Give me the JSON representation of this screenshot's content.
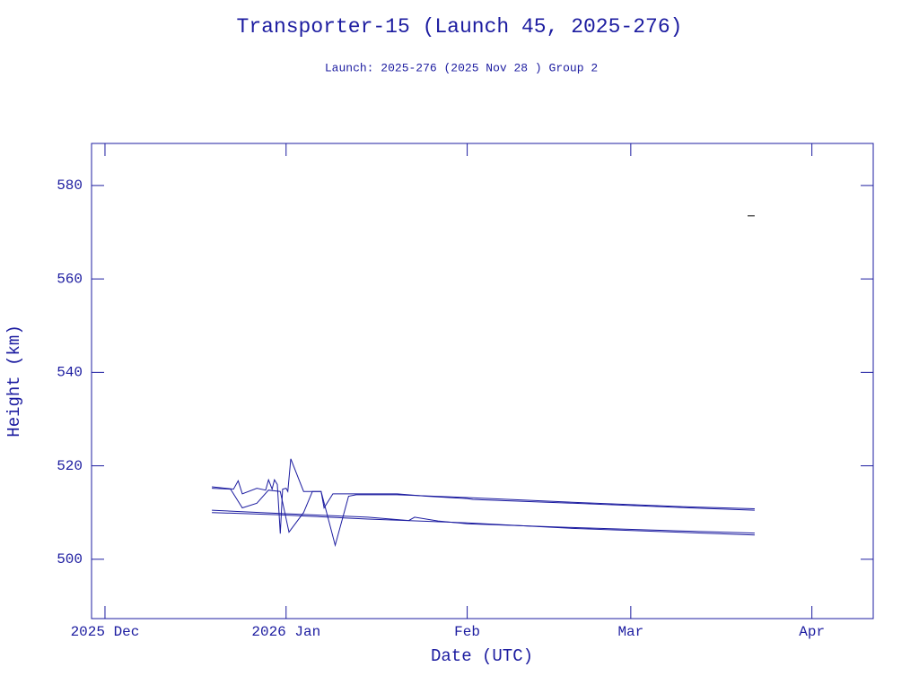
{
  "chart_data": {
    "type": "line",
    "title": "Transporter-15 (Launch 45, 2025-276)",
    "subtitle": "Launch: 2025-276  (2025 Nov 28 )  Group 2",
    "xlabel": "Date (UTC)",
    "ylabel": "Height (km)",
    "xlim": [
      -2.3,
      131.5
    ],
    "xticks": [
      {
        "value": 0,
        "label": "2025 Dec"
      },
      {
        "value": 31,
        "label": "2026 Jan"
      },
      {
        "value": 62,
        "label": "Feb"
      },
      {
        "value": 90,
        "label": "Mar"
      },
      {
        "value": 121,
        "label": "Apr"
      }
    ],
    "ylim": [
      487.3,
      589
    ],
    "yticks": [
      500,
      520,
      540,
      560,
      580
    ],
    "grid": false,
    "series": [
      {
        "color": "#1c1ca0",
        "x": [
          18.3,
          22,
          22.8,
          23.5,
          26,
          27.5,
          28,
          28.6,
          29,
          29.5,
          30,
          30.4,
          31,
          31.3,
          31.8,
          34,
          37,
          37.5,
          39,
          44,
          50,
          55,
          62,
          63,
          80,
          100,
          111.2
        ],
        "values": [
          515.5,
          515,
          516.8,
          514,
          515.2,
          514.8,
          517,
          515,
          517,
          516,
          505.5,
          515,
          515.2,
          514.5,
          521.5,
          514.5,
          514.5,
          511,
          514,
          514,
          514,
          513.5,
          513,
          512.8,
          512,
          511,
          510.5
        ]
      },
      {
        "color": "#1c1ca0",
        "x": [
          18.3,
          21.5,
          23.5,
          26,
          28,
          30,
          31.5,
          34,
          35.5,
          37,
          39.4,
          41.7,
          43,
          50,
          62,
          80,
          100,
          111.2
        ],
        "values": [
          515.2,
          515,
          511,
          512,
          514.8,
          514.5,
          505.8,
          510,
          514.5,
          514.5,
          503,
          513.5,
          513.8,
          513.8,
          513.2,
          512.2,
          511.2,
          510.8
        ]
      },
      {
        "color": "#1c1ca0",
        "x": [
          18.3,
          30,
          45,
          52,
          53,
          57,
          62,
          80,
          100,
          111.2
        ],
        "values": [
          510.5,
          509.8,
          509,
          508.3,
          509,
          508.2,
          507.6,
          506.8,
          506,
          505.6
        ]
      },
      {
        "color": "#1c1ca0",
        "x": [
          18.3,
          30,
          45,
          62,
          80,
          100,
          111.2
        ],
        "values": [
          510,
          509.5,
          508.6,
          507.8,
          506.6,
          505.7,
          505.2
        ]
      },
      {
        "color": "#000000",
        "x": [
          110,
          111.2
        ],
        "values": [
          573.5,
          573.5
        ]
      }
    ],
    "axis_color": "#1c1ca0"
  }
}
